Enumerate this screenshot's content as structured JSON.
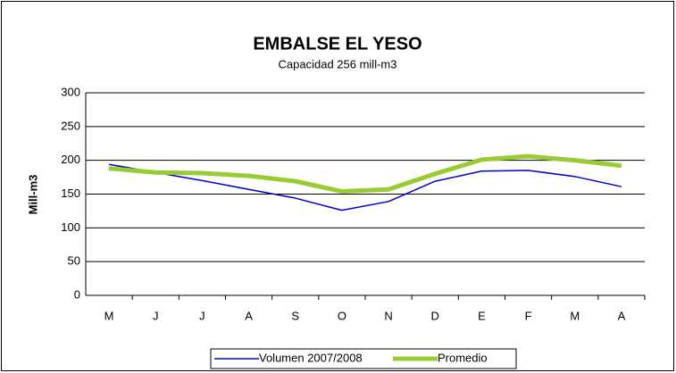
{
  "chart_data": {
    "type": "line",
    "title": "EMBALSE EL YESO",
    "subtitle": "Capacidad 256 mill-m3",
    "y_label": "Mill-m3",
    "categories": [
      "M",
      "J",
      "J",
      "A",
      "S",
      "O",
      "N",
      "D",
      "E",
      "F",
      "M",
      "A"
    ],
    "series": [
      {
        "name": "Volumen  2007/2008",
        "color": "#0000cc",
        "width": 1.5,
        "values": [
          194,
          182,
          170,
          157,
          144,
          126,
          139,
          169,
          184,
          185,
          176,
          161
        ]
      },
      {
        "name": "Promedio",
        "color": "#99cc33",
        "width": 5,
        "values": [
          188,
          182,
          181,
          177,
          169,
          154,
          157,
          180,
          201,
          206,
          200,
          192
        ]
      }
    ],
    "ylim": [
      0,
      300
    ],
    "yticks": [
      0,
      50,
      100,
      150,
      200,
      250,
      300
    ],
    "grid": true
  }
}
